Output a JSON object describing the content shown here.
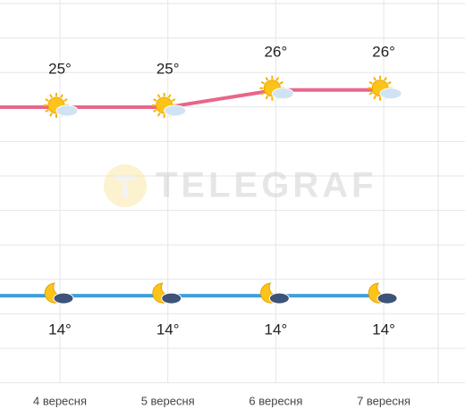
{
  "chart_data": {
    "type": "line",
    "categories": [
      "4 вересня",
      "5 вересня",
      "6 вересня",
      "7 вересня"
    ],
    "series": [
      {
        "name": null,
        "color": "#e8668a",
        "values": [
          25,
          25,
          26,
          26
        ],
        "value_labels": [
          "25°",
          "25°",
          "26°",
          "26°"
        ]
      },
      {
        "name": null,
        "color": "#3f9fd8",
        "values": [
          14,
          14,
          14,
          14
        ],
        "value_labels": [
          "14°",
          "14°",
          "14°",
          "14°"
        ]
      }
    ],
    "ylim": [
      8.9,
      31.25
    ],
    "grid": true,
    "watermark": "TELEGRAF"
  }
}
